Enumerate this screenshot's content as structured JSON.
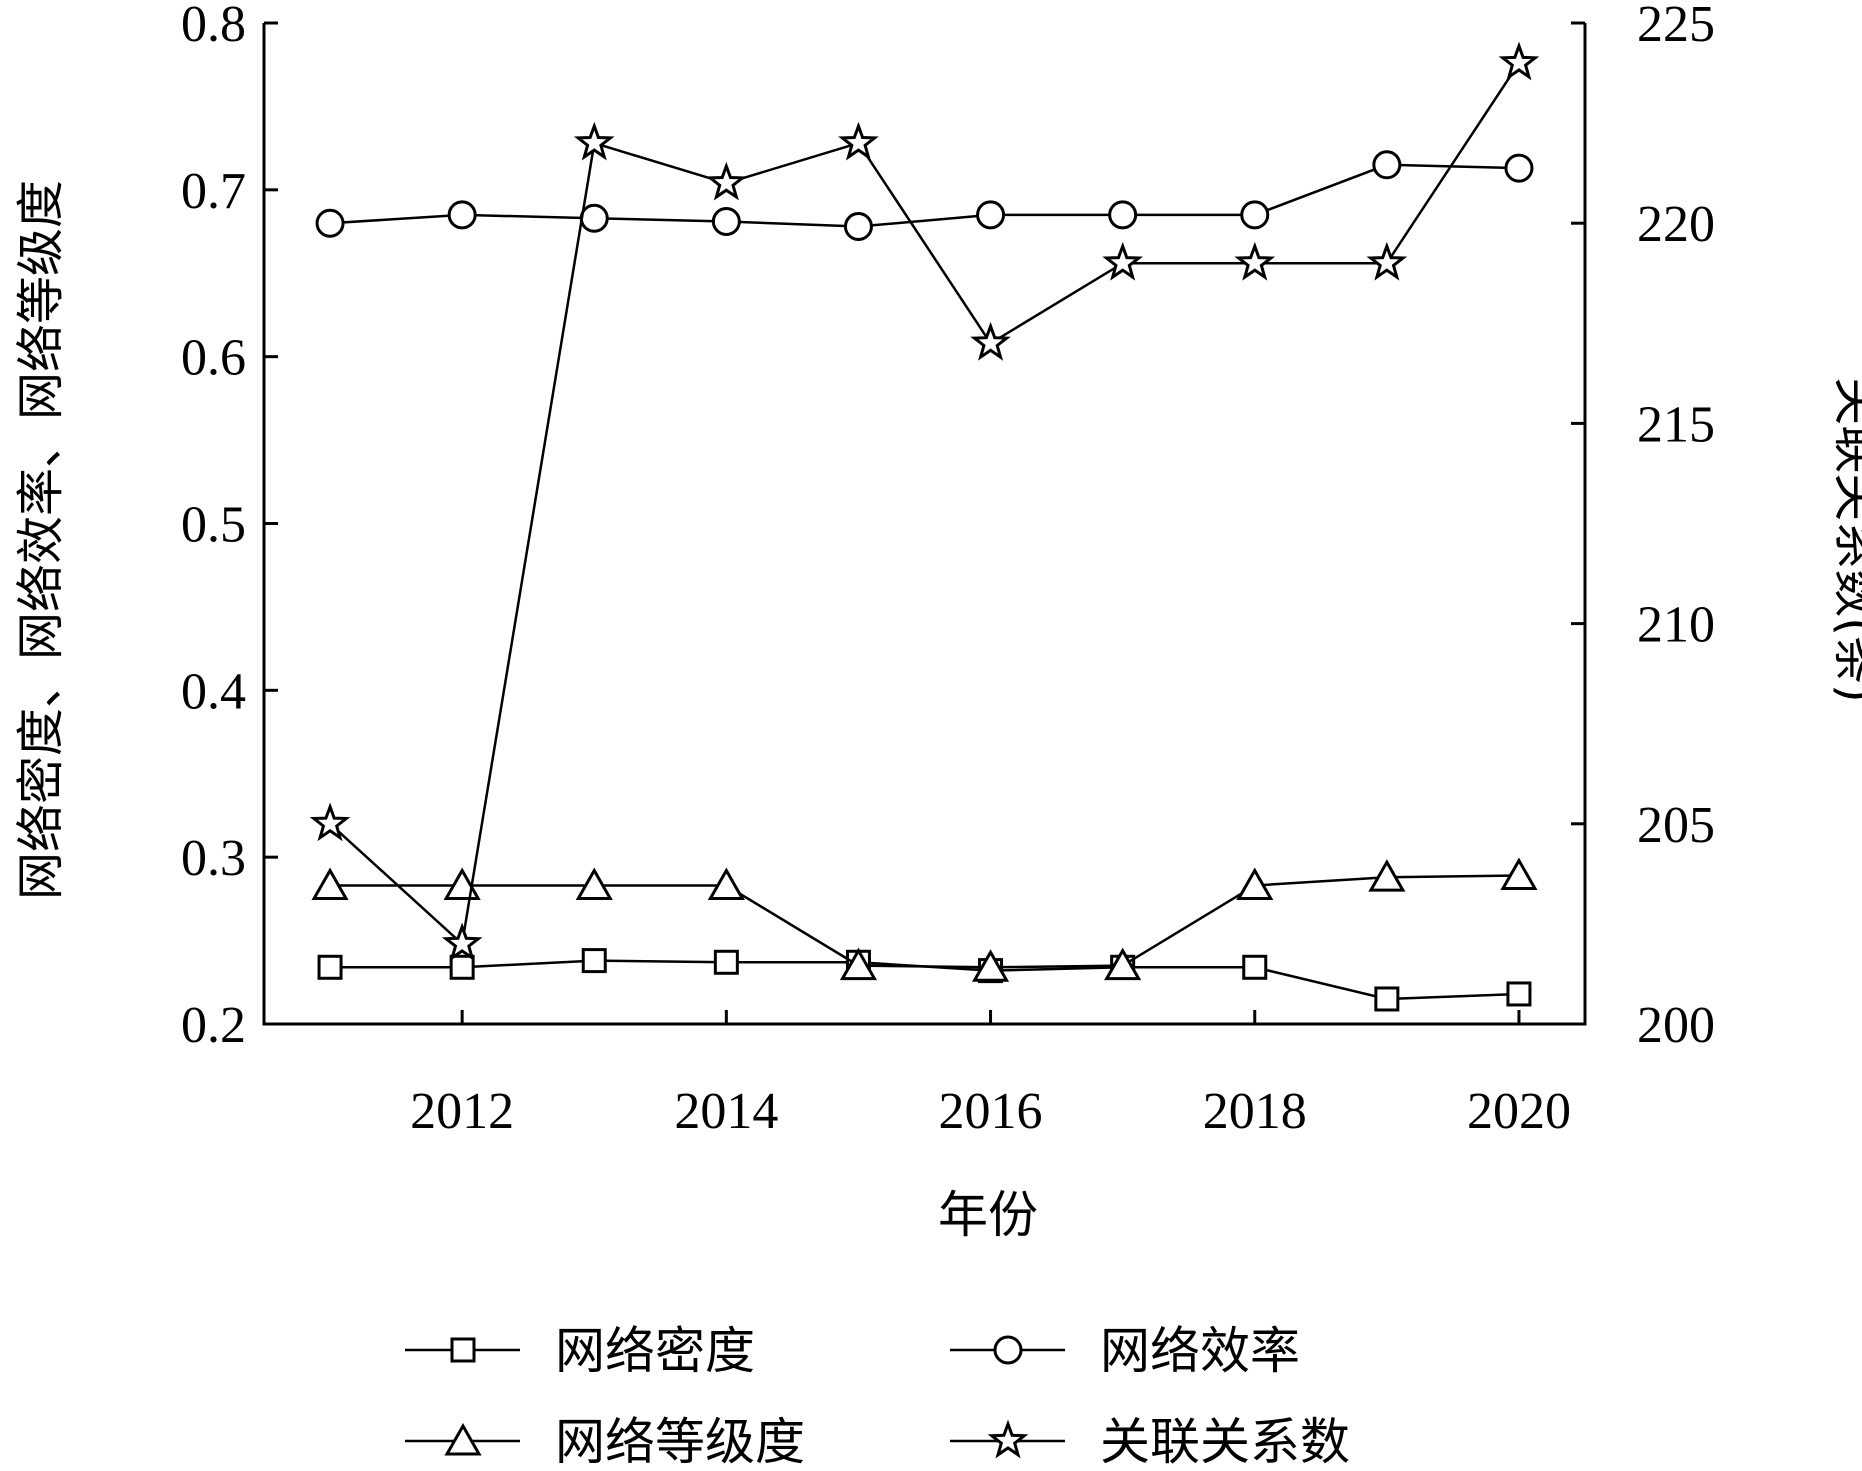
{
  "chart_data": {
    "type": "line",
    "title": "",
    "xlabel": "年份",
    "ylabel_left": "网络密度、网络效率、网络等级度",
    "ylabel_right": "关联关系数(条)",
    "x": [
      2011,
      2012,
      2013,
      2014,
      2015,
      2016,
      2017,
      2018,
      2019,
      2020
    ],
    "x_ticks": [
      "2012",
      "2014",
      "2016",
      "2018",
      "2020"
    ],
    "x_tick_values": [
      2012,
      2014,
      2016,
      2018,
      2020
    ],
    "xlim": [
      2010.5,
      2020.5
    ],
    "ylim_left": [
      0.2,
      0.8
    ],
    "ylim_right": [
      200,
      225
    ],
    "y_ticks_left": [
      "0.2",
      "0.3",
      "0.4",
      "0.5",
      "0.6",
      "0.7",
      "0.8"
    ],
    "y_tick_values_left": [
      0.2,
      0.3,
      0.4,
      0.5,
      0.6,
      0.7,
      0.8
    ],
    "y_ticks_right": [
      "200",
      "205",
      "210",
      "215",
      "220",
      "225"
    ],
    "y_tick_values_right": [
      200,
      205,
      210,
      215,
      220,
      225
    ],
    "grid": false,
    "legend_position": "bottom",
    "series": [
      {
        "name": "网络密度",
        "axis": "left",
        "marker": "square",
        "values": [
          0.234,
          0.234,
          0.238,
          0.237,
          0.237,
          0.232,
          0.234,
          0.234,
          0.215,
          0.218
        ]
      },
      {
        "name": "网络效率",
        "axis": "left",
        "marker": "circle",
        "values": [
          0.68,
          0.685,
          0.683,
          0.681,
          0.678,
          0.685,
          0.685,
          0.685,
          0.715,
          0.713
        ]
      },
      {
        "name": "网络等级度",
        "axis": "left",
        "marker": "triangle",
        "values": [
          0.283,
          0.283,
          0.283,
          0.283,
          0.235,
          0.234,
          0.235,
          0.283,
          0.288,
          0.289
        ]
      },
      {
        "name": "关联关系数",
        "axis": "right",
        "marker": "star",
        "values": [
          205,
          202,
          222,
          221,
          222,
          217,
          219,
          219,
          219,
          224
        ]
      }
    ]
  }
}
